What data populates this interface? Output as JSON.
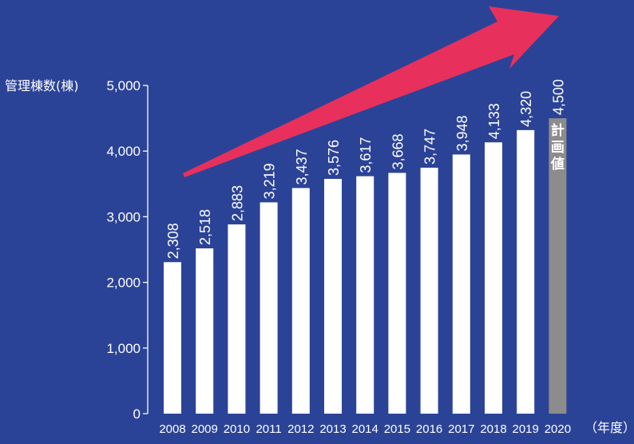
{
  "chart_data": {
    "type": "bar",
    "ylabel": "管理棟数(棟)",
    "xlabel": "（年度）",
    "ylim": [
      0,
      5000
    ],
    "yticks": [
      {
        "value": 0,
        "label": "0"
      },
      {
        "value": 1000,
        "label": "1,000"
      },
      {
        "value": 2000,
        "label": "2,000"
      },
      {
        "value": 3000,
        "label": "3,000"
      },
      {
        "value": 4000,
        "label": "4,000"
      },
      {
        "value": 5000,
        "label": "5,000"
      }
    ],
    "categories": [
      "2008",
      "2009",
      "2010",
      "2011",
      "2012",
      "2013",
      "2014",
      "2015",
      "2016",
      "2017",
      "2018",
      "2019",
      "2020"
    ],
    "values": [
      2308,
      2518,
      2883,
      3219,
      3437,
      3576,
      3617,
      3668,
      3747,
      3948,
      4133,
      4320,
      4500
    ],
    "value_labels": [
      "2,308",
      "2,518",
      "2,883",
      "3,219",
      "3,437",
      "3,576",
      "3,617",
      "3,668",
      "3,747",
      "3,948",
      "4,133",
      "4,320",
      "4,500"
    ],
    "planned_index": 12,
    "planned_note": "計画値",
    "grid": false,
    "colors": {
      "background": "#2b4397",
      "bar": "#ffffff",
      "planned_bar": "#8c8c8c",
      "planned_label": "#9a9a9a",
      "arrow": "#e8305c"
    }
  }
}
